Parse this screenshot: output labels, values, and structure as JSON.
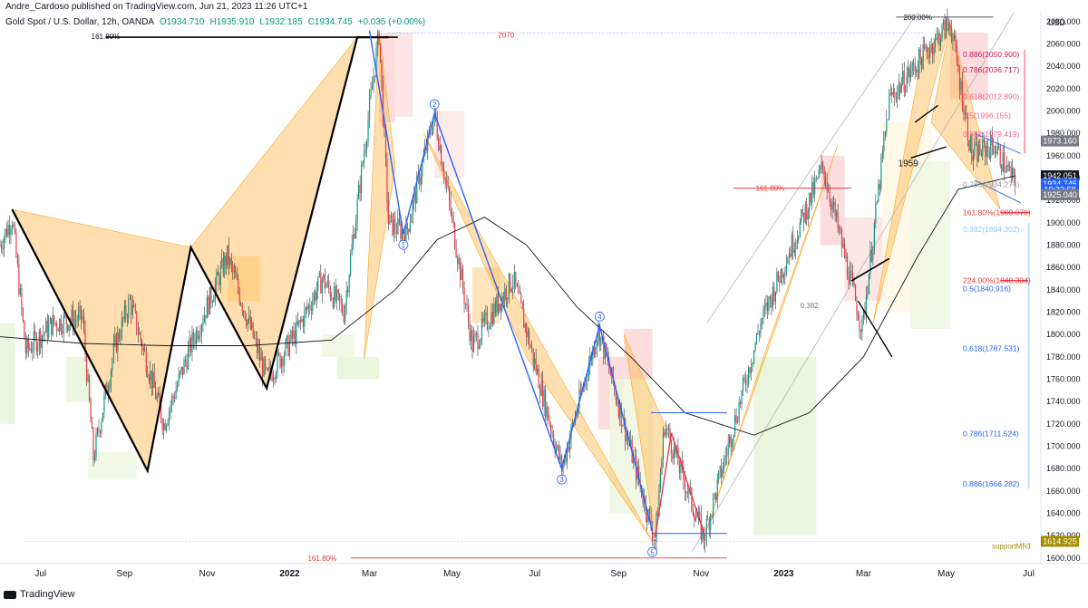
{
  "publisher": "Andre_Cardoso published on TradingView.com, Jun 21, 2023 11:26 UTC+1",
  "symbol_line": "Gold Spot / U.S. Dollar, 12h, OANDA",
  "ohlc": {
    "open": "O1934.710",
    "high": "H1935.910",
    "low": "L1932.185",
    "close": "C1934.745",
    "change": "+0.035 (+0.00%)"
  },
  "branding": "TradingView",
  "colors": {
    "up": "#089981",
    "down": "#f23645",
    "wave": "#2962ff",
    "fill": "#ffb74d",
    "ma": "#131722"
  },
  "chart_data": {
    "type": "candlestick",
    "currency": "USD",
    "ylim": [
      1595,
      2088
    ],
    "y_ticks": [
      1600,
      1620,
      1640,
      1660,
      1680,
      1700,
      1720,
      1740,
      1760,
      1780,
      1800,
      1820,
      1840,
      1860,
      1880,
      1900,
      1920,
      1940,
      1960,
      1980,
      2000,
      2020,
      2040,
      2060,
      2080
    ],
    "x_range": [
      "2021-06-01",
      "2023-07-10"
    ],
    "x_ticks": [
      {
        "date": "2021-07-01",
        "label": "Jul"
      },
      {
        "date": "2021-09-01",
        "label": "Sep"
      },
      {
        "date": "2021-11-01",
        "label": "Nov"
      },
      {
        "date": "2022-01-01",
        "label": "2022"
      },
      {
        "date": "2022-03-01",
        "label": "Mar"
      },
      {
        "date": "2022-05-01",
        "label": "May"
      },
      {
        "date": "2022-07-01",
        "label": "Jul"
      },
      {
        "date": "2022-09-01",
        "label": "Sep"
      },
      {
        "date": "2022-11-01",
        "label": "Nov"
      },
      {
        "date": "2023-01-01",
        "label": "2023"
      },
      {
        "date": "2023-03-01",
        "label": "Mar"
      },
      {
        "date": "2023-05-01",
        "label": "May"
      },
      {
        "date": "2023-07-01",
        "label": "Jul"
      }
    ],
    "price_path": [
      [
        "2021-06-01",
        1880
      ],
      [
        "2021-06-10",
        1905
      ],
      [
        "2021-06-20",
        1785
      ],
      [
        "2021-07-10",
        1810
      ],
      [
        "2021-08-01",
        1815
      ],
      [
        "2021-08-09",
        1690
      ],
      [
        "2021-08-25",
        1790
      ],
      [
        "2021-09-05",
        1830
      ],
      [
        "2021-09-30",
        1720
      ],
      [
        "2021-10-20",
        1790
      ],
      [
        "2021-11-16",
        1870
      ],
      [
        "2021-12-15",
        1760
      ],
      [
        "2022-01-05",
        1800
      ],
      [
        "2022-01-25",
        1850
      ],
      [
        "2022-02-10",
        1820
      ],
      [
        "2022-03-08",
        2070
      ],
      [
        "2022-03-15",
        1900
      ],
      [
        "2022-03-28",
        1890
      ],
      [
        "2022-04-18",
        1998
      ],
      [
        "2022-05-16",
        1790
      ],
      [
        "2022-06-15",
        1850
      ],
      [
        "2022-07-21",
        1680
      ],
      [
        "2022-08-17",
        1805
      ],
      [
        "2022-09-28",
        1615
      ],
      [
        "2022-10-05",
        1720
      ],
      [
        "2022-11-03",
        1618
      ],
      [
        "2022-12-15",
        1810
      ],
      [
        "2023-01-30",
        1950
      ],
      [
        "2023-02-28",
        1805
      ],
      [
        "2023-03-20",
        2010
      ],
      [
        "2023-04-13",
        2048
      ],
      [
        "2023-05-04",
        2080
      ],
      [
        "2023-05-20",
        1960
      ],
      [
        "2023-06-05",
        1970
      ],
      [
        "2023-06-21",
        1934.745
      ]
    ],
    "moving_average": [
      [
        "2021-06-01",
        1798
      ],
      [
        "2021-08-01",
        1792
      ],
      [
        "2021-10-01",
        1790
      ],
      [
        "2021-12-01",
        1790
      ],
      [
        "2022-02-01",
        1795
      ],
      [
        "2022-03-20",
        1840
      ],
      [
        "2022-04-20",
        1885
      ],
      [
        "2022-05-25",
        1905
      ],
      [
        "2022-06-25",
        1880
      ],
      [
        "2022-08-01",
        1825
      ],
      [
        "2022-09-10",
        1780
      ],
      [
        "2022-10-20",
        1730
      ],
      [
        "2022-12-10",
        1710
      ],
      [
        "2023-01-20",
        1730
      ],
      [
        "2023-03-01",
        1780
      ],
      [
        "2023-04-10",
        1870
      ],
      [
        "2023-05-10",
        1930
      ],
      [
        "2023-06-21",
        1942
      ]
    ],
    "wave_points": [
      {
        "label": "1",
        "date": "2022-03-26",
        "price": 1890
      },
      {
        "label": "2",
        "date": "2022-04-18",
        "price": 1998
      },
      {
        "label": "3",
        "date": "2022-07-21",
        "price": 1680
      },
      {
        "label": "4",
        "date": "2022-08-18",
        "price": 1808
      },
      {
        "label": "5",
        "date": "2022-09-26",
        "price": 1615
      }
    ],
    "fib_right": [
      {
        "label": "0.886(2050.900)",
        "price": 2050.9
      },
      {
        "label": "0.786(2036.717)",
        "price": 2036.717
      },
      {
        "label": "0.618(2012.890)",
        "price": 2012.89
      },
      {
        "label": "0.5(1996.155)",
        "price": 1996.155
      },
      {
        "label": "0.382(1979.419)",
        "price": 1979.419
      },
      {
        "label": "0.786(1934.274)",
        "price": 1934.274
      },
      {
        "label": "161.80%(1909.070)",
        "price": 1909.07
      },
      {
        "label": "0.382(1894.302)",
        "price": 1894.302
      },
      {
        "label": "224.00%(1848.304)",
        "price": 1848.304
      },
      {
        "label": "0.5(1840.916)",
        "price": 1840.916
      },
      {
        "label": "0.618(1787.531)",
        "price": 1787.531
      },
      {
        "label": "0.786(1711.524)",
        "price": 1711.524
      },
      {
        "label": "0.886(1666.282)",
        "price": 1666.282
      }
    ],
    "annotations": [
      {
        "text": "161.80%",
        "date": "2021-08-18",
        "price": 2067
      },
      {
        "text": "2070",
        "date": "2022-06-10",
        "price": 2068
      },
      {
        "text": "200.00%",
        "date": "2023-04-10",
        "price": 2084
      },
      {
        "text": "161.80%",
        "date": "2022-12-22",
        "price": 1931
      },
      {
        "text": "1959",
        "date": "2023-04-03",
        "price": 1953
      },
      {
        "text": "0.382",
        "date": "2023-01-20",
        "price": 1826
      },
      {
        "text": "161.80%",
        "date": "2022-01-25",
        "price": 1600
      },
      {
        "text": "supportMN1",
        "date": "2023-07-03",
        "price": 1611
      }
    ],
    "price_badges": [
      {
        "text": "1973.160",
        "price": 1973.16,
        "color": "#787b86"
      },
      {
        "text": "1942.051",
        "price": 1942.051,
        "color": "#131722"
      },
      {
        "text": "1934.745",
        "price": 1934.745,
        "color": "#2962ff"
      },
      {
        "text": "10:33:58",
        "price": 1929.5,
        "color": "#2962ff"
      },
      {
        "text": "1925.040",
        "price": 1925.04,
        "color": "#787b86"
      },
      {
        "text": "1614.925",
        "price": 1614.925,
        "color": "#a58c00"
      }
    ]
  }
}
